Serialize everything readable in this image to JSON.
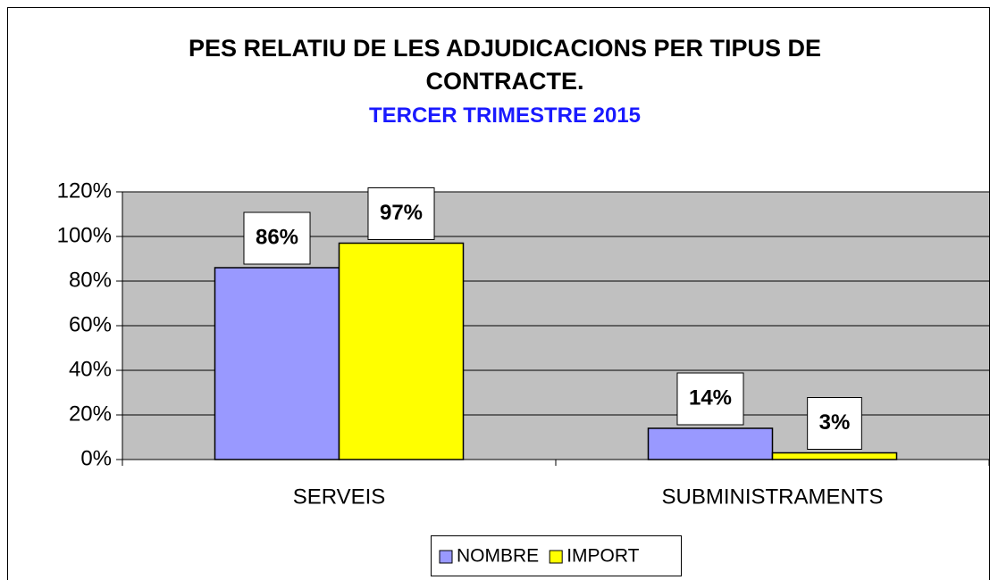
{
  "chart_data": {
    "type": "bar",
    "title": "PES RELATIU DE LES ADJUDICACIONS PER TIPUS DE CONTRACTE.",
    "subtitle": "TERCER TRIMESTRE 2015",
    "categories": [
      "SERVEIS",
      "SUBMINISTRAMENTS"
    ],
    "series": [
      {
        "name": "NOMBRE",
        "color": "#9999ff",
        "values": [
          86,
          14
        ],
        "value_labels": [
          "86%",
          "14%"
        ]
      },
      {
        "name": "IMPORT",
        "color": "#ffff00",
        "values": [
          97,
          3
        ],
        "value_labels": [
          "97%",
          "3%"
        ]
      }
    ],
    "ylim": [
      0,
      120
    ],
    "yticks": [
      {
        "value": 0,
        "label": "0%"
      },
      {
        "value": 20,
        "label": "20%"
      },
      {
        "value": 40,
        "label": "40%"
      },
      {
        "value": 60,
        "label": "60%"
      },
      {
        "value": 80,
        "label": "80%"
      },
      {
        "value": 100,
        "label": "100%"
      },
      {
        "value": 120,
        "label": "120%"
      }
    ],
    "grid": true,
    "legend": "bottom"
  }
}
